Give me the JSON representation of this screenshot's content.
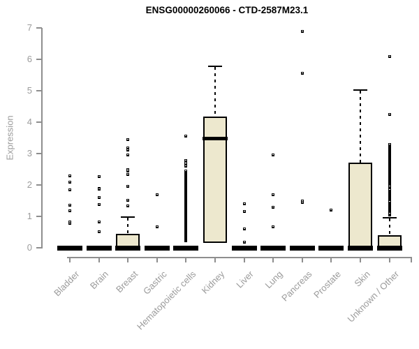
{
  "chart_data": {
    "type": "boxplot",
    "title": "ENSG00000260066 - CTD-2587M23.1",
    "ylabel": "Expression",
    "xlabel": "",
    "ylim": [
      0,
      7
    ],
    "yticks": [
      0,
      1,
      2,
      3,
      4,
      5,
      6,
      7
    ],
    "grid": false,
    "legend": "none",
    "colors": {
      "box_fill": "#EDE8CE",
      "box_stroke": "#000000",
      "axis_line": "#8e8e8e",
      "axis_text": "#9b9b9b",
      "title_text": "#000000"
    },
    "categories": [
      "Bladder",
      "Brain",
      "Breast",
      "Gastric",
      "Hematopoietic cells",
      "Kidney",
      "Liver",
      "Lung",
      "Pancreas",
      "Prostate",
      "Skin",
      "Unknown / Other"
    ],
    "boxes": [
      {
        "label": "Bladder",
        "q1": 0,
        "median": 0,
        "q3": 0,
        "whisker_high": 0,
        "outliers": [
          2.3,
          2.08,
          1.85,
          1.35,
          1.17,
          0.82,
          0.78
        ],
        "dense": []
      },
      {
        "label": "Brain",
        "q1": 0,
        "median": 0,
        "q3": 0,
        "whisker_high": 0,
        "outliers": [
          2.27,
          1.9,
          1.86,
          1.6,
          1.37,
          0.82,
          0.51
        ],
        "dense": []
      },
      {
        "label": "Breast",
        "q1": 0,
        "median": 0,
        "q3": 0.45,
        "whisker_high": 0.98,
        "outliers": [
          3.45,
          3.17,
          3.12,
          2.95,
          2.5,
          2.44,
          2.33,
          1.96,
          1.51,
          1.34
        ],
        "dense": []
      },
      {
        "label": "Gastric",
        "q1": 0,
        "median": 0,
        "q3": 0,
        "whisker_high": 0,
        "outliers": [
          1.7,
          0.66
        ],
        "dense": []
      },
      {
        "label": "Hematopoietic cells",
        "q1": 0,
        "median": 0,
        "q3": 0,
        "whisker_high": 0,
        "outliers": [
          3.55,
          2.78,
          2.72,
          2.66,
          2.6
        ],
        "dense": [
          {
            "from": 0.22,
            "to": 2.45,
            "count": 55
          }
        ]
      },
      {
        "label": "Kidney",
        "q1": 0.15,
        "median": 3.5,
        "q3": 4.17,
        "whisker_high": 5.78,
        "outliers": [],
        "dense": []
      },
      {
        "label": "Liver",
        "q1": 0,
        "median": 0,
        "q3": 0,
        "whisker_high": 0,
        "outliers": [
          1.4,
          1.16,
          0.6,
          0.18
        ],
        "dense": []
      },
      {
        "label": "Lung",
        "q1": 0,
        "median": 0,
        "q3": 0,
        "whisker_high": 0,
        "outliers": [
          2.95,
          1.7,
          1.3,
          0.66
        ],
        "dense": []
      },
      {
        "label": "Pancreas",
        "q1": 0,
        "median": 0,
        "q3": 0,
        "whisker_high": 0,
        "outliers": [
          6.9,
          5.55,
          1.5,
          1.44
        ],
        "dense": []
      },
      {
        "label": "Prostate",
        "q1": 0,
        "median": 0,
        "q3": 0,
        "whisker_high": 0,
        "outliers": [
          1.2
        ],
        "dense": []
      },
      {
        "label": "Skin",
        "q1": 0,
        "median": 0,
        "q3": 2.72,
        "whisker_high": 5.02,
        "outliers": [],
        "dense": []
      },
      {
        "label": "Unknown / Other",
        "q1": 0,
        "median": 0,
        "q3": 0.4,
        "whisker_high": 0.96,
        "outliers": [
          6.1,
          4.25
        ],
        "dense": [
          {
            "from": 2.05,
            "to": 3.3,
            "count": 30
          },
          {
            "from": 1.05,
            "to": 1.95,
            "count": 20
          }
        ]
      }
    ]
  }
}
